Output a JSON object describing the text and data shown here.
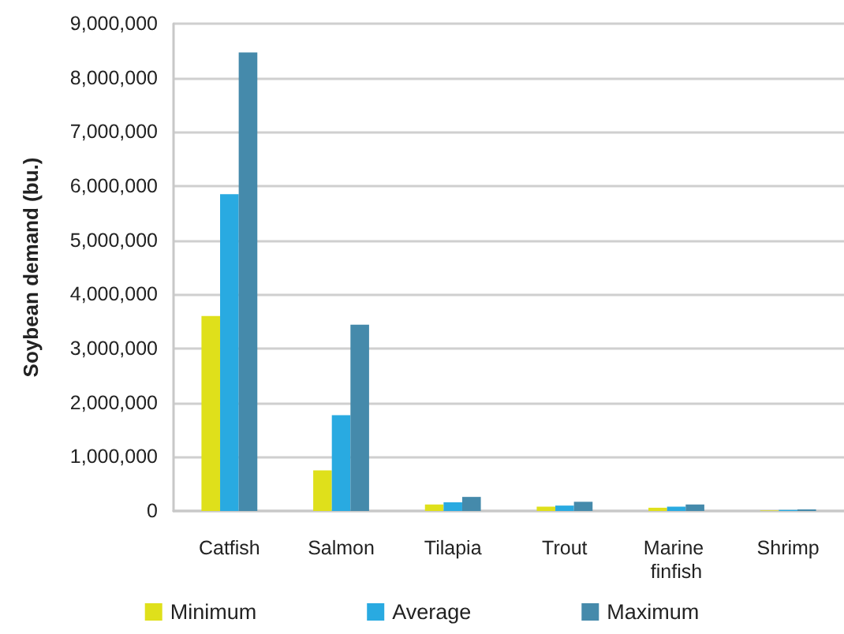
{
  "chart_data": {
    "type": "bar",
    "ylabel": "Soybean demand (bu.)",
    "categories": [
      "Catfish",
      "Salmon",
      "Tilapia",
      "Trout",
      "Marine finfish",
      "Shrimp"
    ],
    "series": [
      {
        "name": "Minimum",
        "color": "#dfe01b",
        "values": [
          3600000,
          750000,
          120000,
          80000,
          60000,
          10000
        ]
      },
      {
        "name": "Average",
        "color": "#29aae1",
        "values": [
          5850000,
          1770000,
          160000,
          100000,
          80000,
          20000
        ]
      },
      {
        "name": "Maximum",
        "color": "#458aab",
        "values": [
          8470000,
          3440000,
          260000,
          170000,
          120000,
          30000
        ]
      }
    ],
    "ylim": [
      0,
      9000000
    ],
    "yticks": [
      0,
      {
        "value": 1000000,
        "label": "1,000,000"
      },
      {
        "value": 2000000,
        "label": "2,000,000"
      },
      {
        "value": 3000000,
        "label": "3,000,000"
      },
      {
        "value": 4000000,
        "label": "4,000,000"
      },
      {
        "value": 5000000,
        "label": "5,000,000"
      },
      {
        "value": 6000000,
        "label": "6,000,000"
      },
      {
        "value": 7000000,
        "label": "7,000,000"
      },
      {
        "value": 8000000,
        "label": "8,000,000"
      },
      {
        "value": 9000000,
        "label": "9,000,000"
      }
    ],
    "grid": "y",
    "legend": "bottom"
  }
}
